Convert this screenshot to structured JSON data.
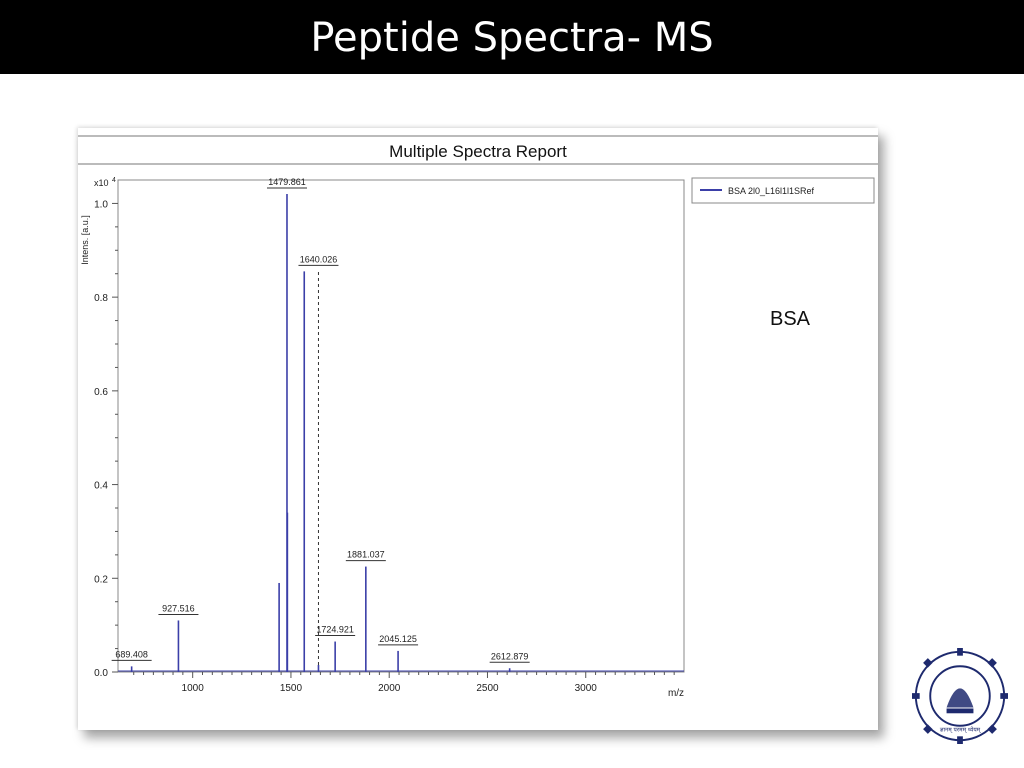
{
  "slide": {
    "title": "Peptide Spectra- MS",
    "side_label": "BSA"
  },
  "chart_data": {
    "type": "line",
    "title": "Multiple Spectra Report",
    "xlabel": "m/z",
    "ylabel": "Intens. [a.u.]",
    "y_multiplier": "x10",
    "y_multiplier_exp": "4",
    "xlim": [
      620,
      3500
    ],
    "ylim": [
      0,
      1.05
    ],
    "x_ticks": [
      1000,
      1500,
      2000,
      2500,
      3000
    ],
    "y_ticks": [
      0.0,
      0.2,
      0.4,
      0.6,
      0.8,
      1.0
    ],
    "y_tick_labels": [
      "0.0",
      "0.2",
      "0.4",
      "0.6",
      "0.8",
      "1.0"
    ],
    "legend": {
      "position": "top-right",
      "entries": [
        "BSA 2l0_L16l1l1SRef"
      ]
    },
    "series": [
      {
        "name": "BSA 2l0_L16l1l1SRef",
        "color": "#3b3fa8",
        "peaks": [
          {
            "mz": 689.408,
            "intensity": 0.012,
            "label": "689.408"
          },
          {
            "mz": 927.516,
            "intensity": 0.11,
            "label": "927.516"
          },
          {
            "mz": 1439.8,
            "intensity": 0.19,
            "label": ""
          },
          {
            "mz": 1479.861,
            "intensity": 1.02,
            "label": "1479.861"
          },
          {
            "mz": 1481.9,
            "intensity": 0.34,
            "label": ""
          },
          {
            "mz": 1567.7,
            "intensity": 0.855,
            "label": ""
          },
          {
            "mz": 1640.026,
            "intensity": 0.015,
            "label": "1640.026",
            "dashed_to": 0.855
          },
          {
            "mz": 1724.921,
            "intensity": 0.065,
            "label": "1724.921"
          },
          {
            "mz": 1881.037,
            "intensity": 0.225,
            "label": "1881.037"
          },
          {
            "mz": 2045.125,
            "intensity": 0.045,
            "label": "2045.125"
          },
          {
            "mz": 2612.879,
            "intensity": 0.008,
            "label": "2612.879"
          }
        ]
      }
    ]
  },
  "logo": {
    "name": "Indian Institute of Technology Bombay",
    "tagline": "ज्ञानम् परमम् ध्येयम्"
  }
}
